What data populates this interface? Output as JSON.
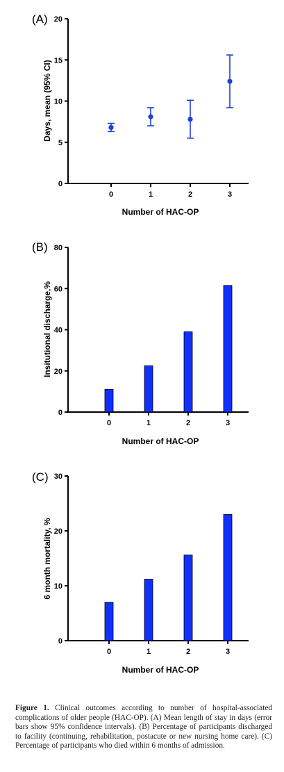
{
  "chart_data": [
    {
      "type": "scatter",
      "panel_label": "(A)",
      "xlabel": "Number of HAC-OP",
      "ylabel": "Days, mean (95% CI)",
      "categories": [
        "0",
        "1",
        "2",
        "3"
      ],
      "values": [
        6.8,
        8.1,
        7.8,
        12.4
      ],
      "ci_low": [
        6.3,
        7.0,
        5.5,
        9.2
      ],
      "ci_high": [
        7.3,
        9.2,
        10.1,
        15.6
      ],
      "ylim": [
        0,
        20
      ],
      "yticks": [
        0,
        5,
        10,
        15,
        20
      ],
      "color": "#1f3fd6"
    },
    {
      "type": "bar",
      "panel_label": "(B)",
      "xlabel": "Number of HAC-OP",
      "ylabel": "Insitutional discharge,%",
      "categories": [
        "0",
        "1",
        "2",
        "3"
      ],
      "values": [
        11,
        22.5,
        39,
        61.5
      ],
      "ylim": [
        0,
        80
      ],
      "yticks": [
        0,
        20,
        40,
        60,
        80
      ],
      "color": "#1030ff"
    },
    {
      "type": "bar",
      "panel_label": "(C)",
      "xlabel": "Number of HAC-OP",
      "ylabel": "6 month mortality, %",
      "categories": [
        "0",
        "1",
        "2",
        "3"
      ],
      "values": [
        7,
        11.2,
        15.6,
        23
      ],
      "ylim": [
        0,
        30
      ],
      "yticks": [
        0,
        10,
        20,
        30
      ],
      "color": "#1030ff"
    }
  ],
  "caption": {
    "label": "Figure 1.",
    "text": " Clinical outcomes according to number of hospital-associated complications of older people (HAC-OP). (A) Mean length of stay in days (error bars show 95% confidence intervals). (B) Percentage of participants discharged to facility (continuing, rehabilitation, postacute or new nursing home care). (C) Percentage of participants who died within 6 months of admission."
  }
}
